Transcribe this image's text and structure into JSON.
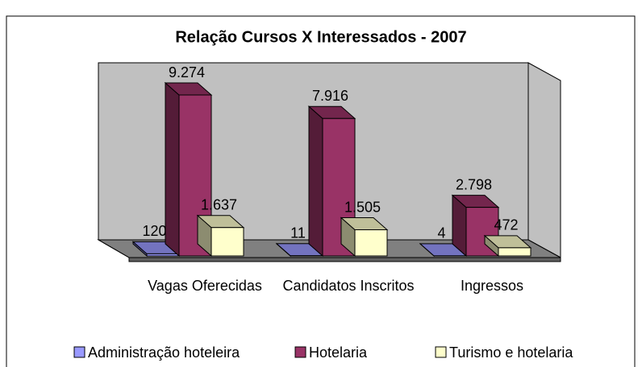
{
  "chart_data": {
    "type": "bar3d",
    "title": "Relação Cursos X Interessados - 2007",
    "categories": [
      "Vagas Oferecidas",
      "Candidatos Inscritos",
      "Ingressos"
    ],
    "series": [
      {
        "name": "Administração hoteleira",
        "color": "#9999ff",
        "values": [
          120,
          11,
          4
        ],
        "value_labels": [
          "120",
          "11",
          "4"
        ]
      },
      {
        "name": "Hotelaria",
        "color": "#993366",
        "values": [
          9274,
          7916,
          2798
        ],
        "value_labels": [
          "9.274",
          "7.916",
          "2.798"
        ]
      },
      {
        "name": "Turismo e hotelaria",
        "color": "#ffffcc",
        "values": [
          1637,
          1505,
          472
        ],
        "value_labels": [
          "1.637",
          "1.505",
          "472"
        ]
      }
    ],
    "legend": "bottom"
  }
}
